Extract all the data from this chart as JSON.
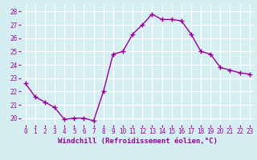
{
  "x": [
    0,
    1,
    2,
    3,
    4,
    5,
    6,
    7,
    8,
    9,
    10,
    11,
    12,
    13,
    14,
    15,
    16,
    17,
    18,
    19,
    20,
    21,
    22,
    23
  ],
  "y": [
    22.6,
    21.6,
    21.2,
    20.8,
    19.9,
    20.0,
    20.0,
    19.8,
    22.0,
    24.8,
    25.0,
    26.3,
    27.0,
    27.8,
    27.4,
    27.4,
    27.3,
    26.3,
    25.0,
    24.8,
    23.8,
    23.6,
    23.4,
    23.3
  ],
  "line_color": "#990099",
  "marker": "+",
  "marker_size": 4,
  "marker_linewidth": 1.0,
  "xlim": [
    -0.5,
    23.5
  ],
  "ylim": [
    19.5,
    28.5
  ],
  "yticks": [
    20,
    21,
    22,
    23,
    24,
    25,
    26,
    27,
    28
  ],
  "xticks": [
    0,
    1,
    2,
    3,
    4,
    5,
    6,
    7,
    8,
    9,
    10,
    11,
    12,
    13,
    14,
    15,
    16,
    17,
    18,
    19,
    20,
    21,
    22,
    23
  ],
  "xlabel": "Windchill (Refroidissement éolien,°C)",
  "bg_color": "#d5eef2",
  "grid_color": "#ffffff",
  "line_width": 1.0,
  "tick_label_color": "#990099",
  "axis_label_color": "#990099",
  "label_fontsize": 6.5,
  "tick_fontsize": 5.5
}
